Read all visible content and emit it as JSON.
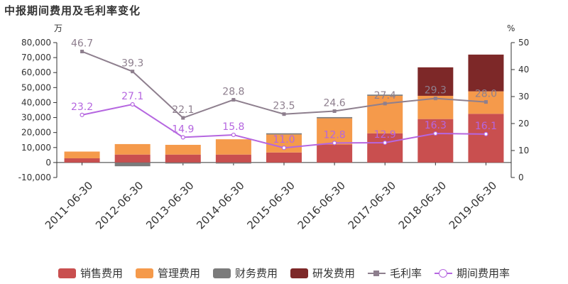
{
  "chart_data": {
    "type": "bar",
    "title": "中报期间费用及毛利率变化",
    "y_left_unit": "万",
    "y_right_unit": "%",
    "categories": [
      "2011-06-30",
      "2012-06-30",
      "2013-06-30",
      "2014-06-30",
      "2015-06-30",
      "2016-06-30",
      "2017-06-30",
      "2018-06-30",
      "2019-06-30"
    ],
    "y_left_ticks": [
      "80,000",
      "70,000",
      "60,000",
      "50,000",
      "40,000",
      "30,000",
      "20,000",
      "10,000",
      "0",
      "-10,000"
    ],
    "y_right_ticks": [
      "50",
      "40",
      "30",
      "20",
      "10",
      "0"
    ],
    "ylim_left": [
      -10000,
      80000
    ],
    "ylim_right": [
      0,
      50
    ],
    "stacked": true,
    "series": [
      {
        "name": "销售费用",
        "type": "bar",
        "color": "#c94f4f",
        "values": [
          2800,
          5300,
          5300,
          5300,
          6700,
          12000,
          19500,
          29000,
          32500
        ]
      },
      {
        "name": "管理费用",
        "type": "bar",
        "color": "#f59a4b",
        "values": [
          4500,
          7000,
          6500,
          10200,
          12000,
          17500,
          25000,
          15500,
          15000
        ]
      },
      {
        "name": "财务费用",
        "type": "bar",
        "color": "#7b7b7b",
        "values": [
          0,
          -2500,
          -700,
          -700,
          800,
          800,
          800,
          0,
          0
        ]
      },
      {
        "name": "研发费用",
        "type": "bar",
        "color": "#7d2828",
        "values": [
          0,
          0,
          0,
          0,
          0,
          0,
          0,
          19000,
          24500
        ]
      },
      {
        "name": "毛利率",
        "type": "line",
        "axis": "right",
        "color": "#8e7f8e",
        "marker": "square",
        "values": [
          46.7,
          39.3,
          22.1,
          28.8,
          23.5,
          24.6,
          27.4,
          29.3,
          28.0
        ],
        "labels": [
          "46.7",
          "39.3",
          "22.1",
          "28.8",
          "23.5",
          "24.6",
          "27.4",
          "29.3",
          "28.0"
        ]
      },
      {
        "name": "期间费用率",
        "type": "line",
        "axis": "right",
        "color": "#b566e0",
        "marker": "circle",
        "values": [
          23.2,
          27.1,
          14.9,
          15.8,
          11.0,
          12.8,
          12.9,
          16.3,
          16.1
        ],
        "labels": [
          "23.2",
          "27.1",
          "14.9",
          "15.8",
          "11.0",
          "12.8",
          "12.9",
          "16.3",
          "16.1"
        ]
      }
    ],
    "legend_position": "bottom"
  }
}
